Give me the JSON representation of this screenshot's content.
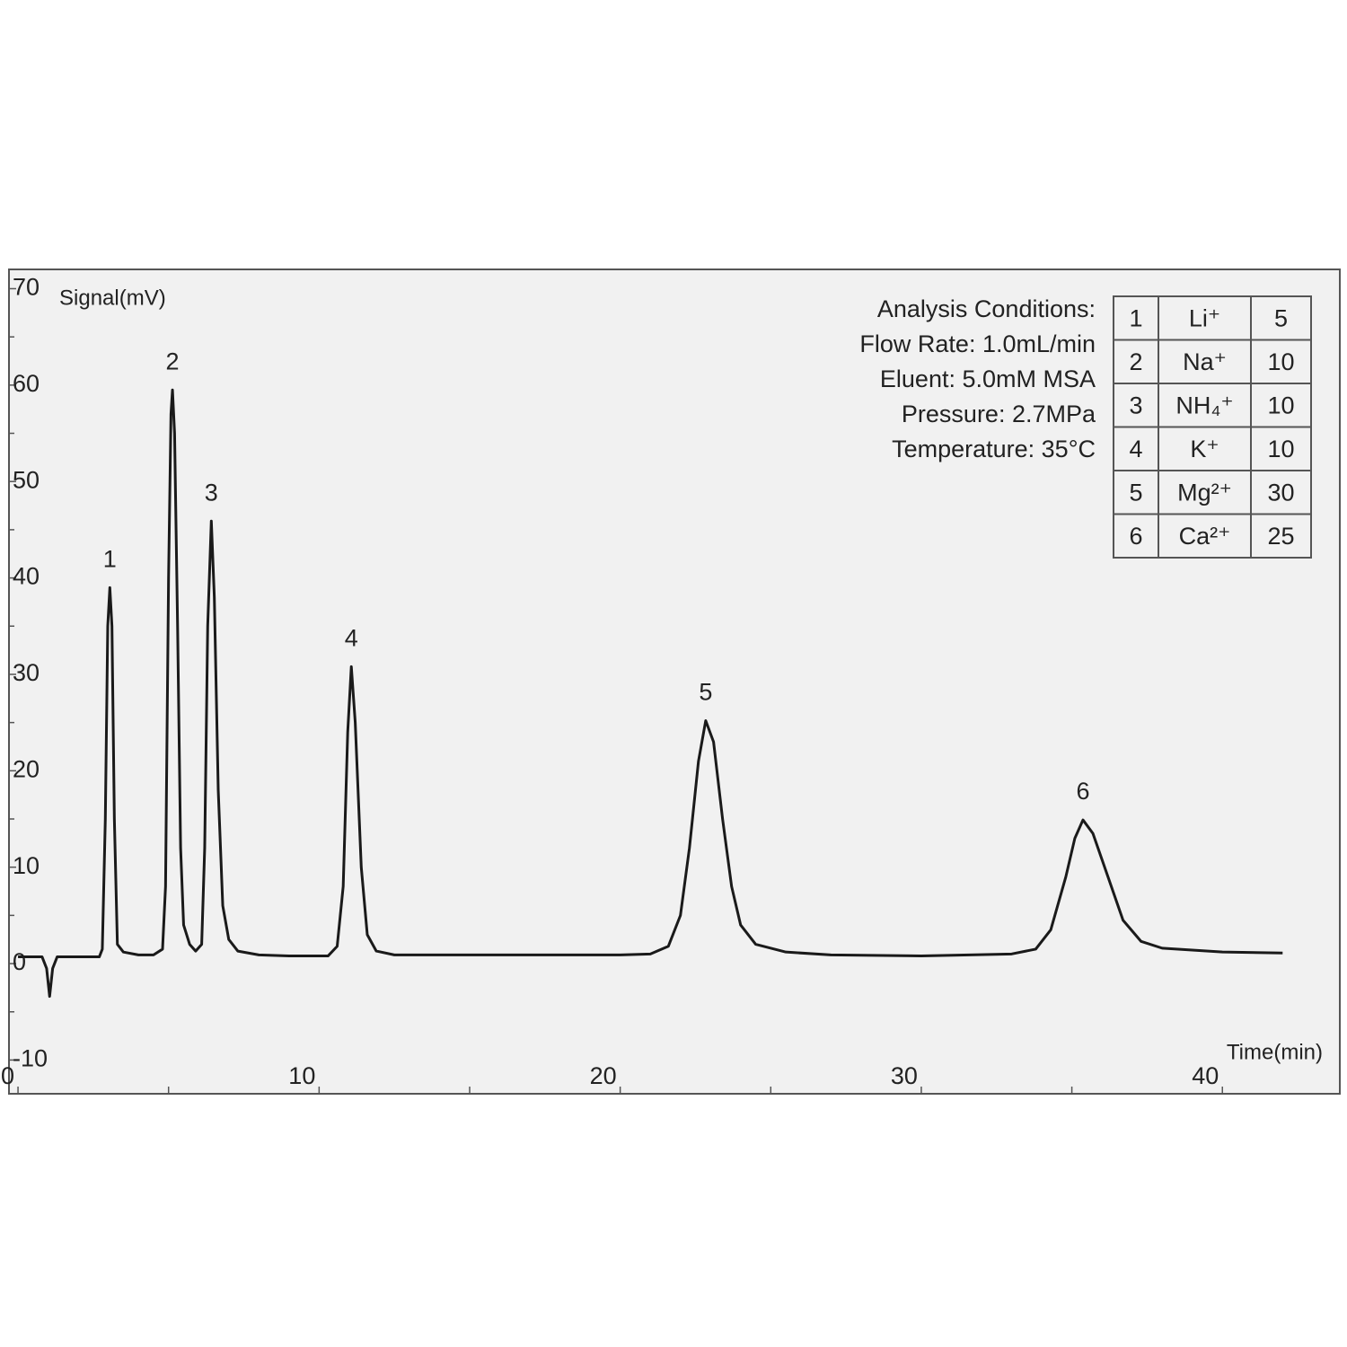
{
  "chart_data": {
    "type": "line",
    "y_label": "Signal(mV)",
    "x_label": "Time(min)",
    "color": "#1a1a1a",
    "xlim": [
      -0.3,
      43.9
    ],
    "ylim": [
      -13.5,
      72
    ],
    "xticks": [
      0,
      10,
      20,
      30,
      40
    ],
    "x_minor_ticks": [
      5,
      15,
      25,
      35
    ],
    "yticks": [
      70,
      60,
      50,
      40,
      30,
      20,
      10,
      0,
      -10
    ],
    "y_minor_ticks": [
      65,
      55,
      45,
      35,
      25,
      15,
      5,
      -5
    ],
    "x": [
      0,
      0.8,
      0.95,
      1.05,
      1.15,
      1.3,
      2.7,
      2.8,
      2.9,
      2.98,
      3.05,
      3.12,
      3.2,
      3.3,
      3.5,
      4.0,
      4.5,
      4.8,
      4.9,
      5.0,
      5.08,
      5.13,
      5.2,
      5.3,
      5.4,
      5.5,
      5.7,
      5.9,
      6.1,
      6.2,
      6.3,
      6.42,
      6.52,
      6.65,
      6.8,
      7.0,
      7.3,
      8,
      9,
      10.3,
      10.6,
      10.8,
      10.95,
      11.07,
      11.2,
      11.4,
      11.6,
      11.9,
      12.5,
      15,
      20,
      21,
      21.6,
      22,
      22.3,
      22.6,
      22.84,
      23.1,
      23.4,
      23.7,
      24,
      24.5,
      25.5,
      27,
      30,
      33,
      33.8,
      34.3,
      34.8,
      35.1,
      35.37,
      35.7,
      36.2,
      36.7,
      37.3,
      38,
      40,
      42
    ],
    "values": [
      0.7,
      0.7,
      -0.5,
      -3.4,
      -0.5,
      0.7,
      0.7,
      1.5,
      15,
      35,
      39,
      35,
      15,
      2,
      1.2,
      0.9,
      0.9,
      1.5,
      8,
      40,
      57,
      59.5,
      55,
      35,
      12,
      4,
      2,
      1.3,
      2,
      12,
      35,
      45.9,
      38,
      18,
      6,
      2.5,
      1.3,
      0.9,
      0.8,
      0.8,
      1.8,
      8,
      24,
      30.8,
      25,
      10,
      3,
      1.3,
      0.9,
      0.9,
      0.9,
      1.0,
      1.8,
      5,
      12,
      21,
      25.2,
      23,
      15,
      8,
      4,
      2,
      1.2,
      0.9,
      0.8,
      1.0,
      1.5,
      3.5,
      9,
      13,
      14.9,
      13.5,
      9,
      4.5,
      2.3,
      1.6,
      1.2,
      1.1
    ],
    "annotations": [
      {
        "text": "1",
        "x": 3.05,
        "y": 39
      },
      {
        "text": "2",
        "x": 5.13,
        "y": 59.5
      },
      {
        "text": "3",
        "x": 6.42,
        "y": 45.9
      },
      {
        "text": "4",
        "x": 11.07,
        "y": 30.8
      },
      {
        "text": "5",
        "x": 22.84,
        "y": 25.2
      },
      {
        "text": "6",
        "x": 35.37,
        "y": 14.9
      }
    ],
    "conditions": [
      "Analysis Conditions:",
      "Flow Rate: 1.0mL/min",
      "Eluent: 5.0mM MSA",
      "Pressure: 2.7MPa",
      "Temperature: 35°C"
    ],
    "table": {
      "rows": [
        [
          1,
          "Li⁺",
          5
        ],
        [
          2,
          "Na⁺",
          10
        ],
        [
          3,
          "NH₄⁺",
          10
        ],
        [
          4,
          "K⁺",
          10
        ],
        [
          5,
          "Mg²⁺",
          30
        ],
        [
          6,
          "Ca²⁺",
          25
        ]
      ]
    }
  }
}
